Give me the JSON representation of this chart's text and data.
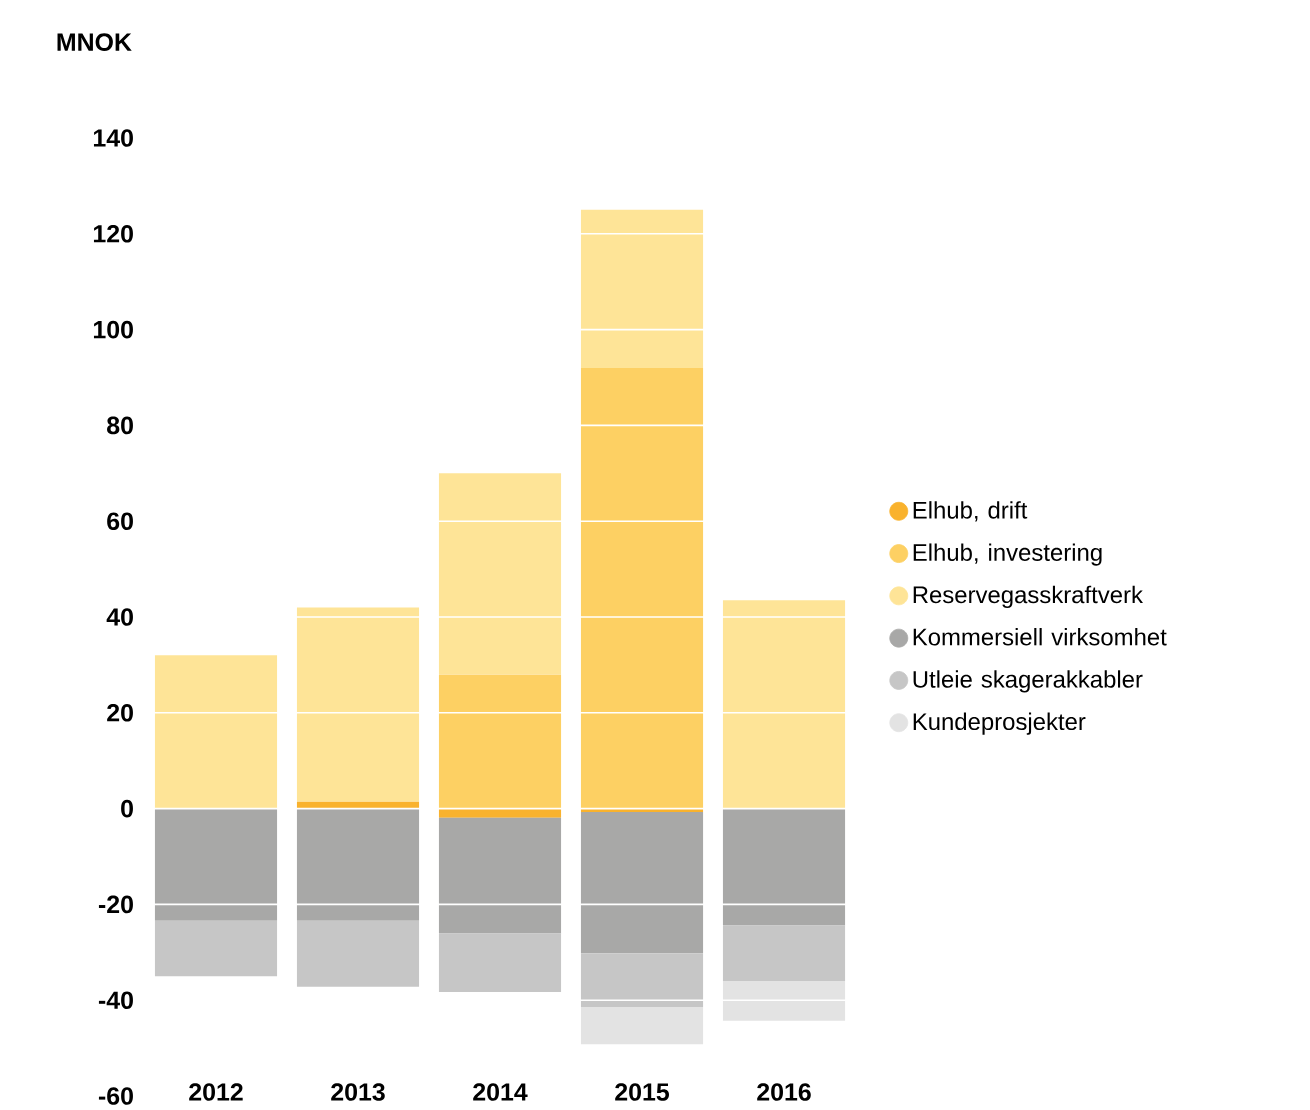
{
  "chart_data": {
    "type": "bar",
    "stacked": true,
    "ylabel": "MNOK",
    "categories": [
      "2012",
      "2013",
      "2014",
      "2015",
      "2016"
    ],
    "series": [
      {
        "name": "Elhub, drift",
        "color": "#f9b22d",
        "values": [
          null,
          1.5,
          -1.9,
          -0.7,
          null
        ]
      },
      {
        "name": "Elhub, investering",
        "color": "#fdd063",
        "values": [
          null,
          null,
          28,
          92,
          null
        ]
      },
      {
        "name": "Reservegasskraftverk",
        "color": "#fee497",
        "values": [
          32,
          40.5,
          42,
          33,
          43.5
        ]
      },
      {
        "name": "Kommersiell virksomhet",
        "color": "#a8a8a7",
        "values": [
          -23.4,
          -23.4,
          -24.2,
          -29.5,
          -24.4
        ]
      },
      {
        "name": "Utleie skagerakkabler",
        "color": "#c6c6c6",
        "values": [
          -11.6,
          -13.8,
          -12.2,
          -11.2,
          -11.6
        ]
      },
      {
        "name": "Kundeprosjekter",
        "color": "#e3e3e3",
        "values": [
          null,
          null,
          null,
          -7.8,
          -8.3
        ]
      }
    ],
    "ylim": [
      -60,
      140
    ],
    "yticks": [
      -60,
      -40,
      -20,
      0,
      20,
      40,
      60,
      80,
      100,
      120,
      140
    ],
    "grid": "y",
    "legend": "right"
  }
}
